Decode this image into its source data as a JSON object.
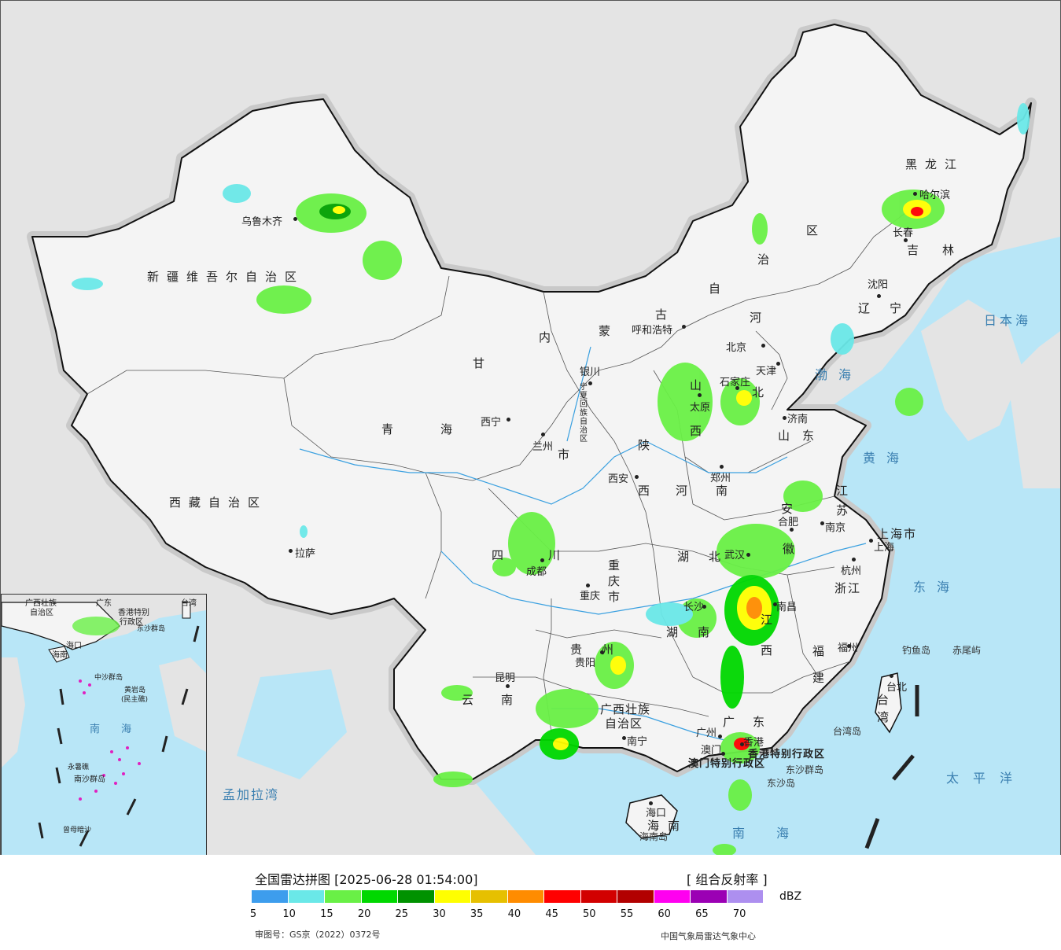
{
  "map": {
    "provinces": [
      {
        "name": "新疆维吾尔自治区"
      },
      {
        "name": "西藏自治区"
      },
      {
        "name": "青海"
      },
      {
        "name": "甘"
      },
      {
        "name": "内"
      },
      {
        "name": "蒙"
      },
      {
        "name": "古"
      },
      {
        "name": "黑龙江"
      },
      {
        "name": "吉林"
      },
      {
        "name": "辽宁"
      },
      {
        "name": "河"
      },
      {
        "name": "北"
      },
      {
        "name": "山"
      },
      {
        "name": "西"
      },
      {
        "name": "山东"
      },
      {
        "name": "河南"
      },
      {
        "name": "陕"
      },
      {
        "name": "西"
      },
      {
        "name": "四"
      },
      {
        "name": "川"
      },
      {
        "name": "重庆市"
      },
      {
        "name": "湖"
      },
      {
        "name": "北"
      },
      {
        "name": "安"
      },
      {
        "name": "徽"
      },
      {
        "name": "江"
      },
      {
        "name": "苏"
      },
      {
        "name": "上海市"
      },
      {
        "name": "浙江"
      },
      {
        "name": "江"
      },
      {
        "name": "西"
      },
      {
        "name": "湖"
      },
      {
        "name": "南"
      },
      {
        "name": "贵"
      },
      {
        "name": "州"
      },
      {
        "name": "云"
      },
      {
        "name": "南"
      },
      {
        "name": "广西壮族"
      },
      {
        "name": "自治区"
      },
      {
        "name": "广"
      },
      {
        "name": "东"
      },
      {
        "name": "福"
      },
      {
        "name": "建"
      },
      {
        "name": "海"
      },
      {
        "name": "南"
      },
      {
        "name": "台"
      },
      {
        "name": "湾"
      },
      {
        "name": "区"
      },
      {
        "name": "治"
      },
      {
        "name": "自"
      },
      {
        "name": "宁夏回族自治区"
      },
      {
        "name": "香港特别行政区"
      },
      {
        "name": "澳门特别行政区"
      },
      {
        "name": "市"
      }
    ],
    "cities": [
      "乌鲁木齐",
      "拉萨",
      "西宁",
      "兰州",
      "银川",
      "呼和浩特",
      "太原",
      "石家庄",
      "北京",
      "天津",
      "济南",
      "郑州",
      "西安",
      "成都",
      "重庆",
      "贵阳",
      "昆明",
      "南宁",
      "广州",
      "香港",
      "澳门",
      "长沙",
      "武汉",
      "南昌",
      "合肥",
      "南京",
      "上海",
      "杭州",
      "福州",
      "台北",
      "沈阳",
      "长春",
      "哈尔滨",
      "海口"
    ],
    "seas": [
      "日本海",
      "渤海",
      "黄海",
      "东海",
      "南海",
      "太平洋",
      "孟加拉湾"
    ],
    "islands": [
      "钓鱼岛",
      "赤尾屿",
      "台湾岛",
      "东沙群岛",
      "东沙岛",
      "海南岛"
    ],
    "inset": {
      "labels": [
        "广西壮族",
        "自治区",
        "广东",
        "香港特别",
        "行政区",
        "东沙群岛",
        "台湾",
        "海口",
        "海南",
        "中沙群岛",
        "黄岩岛",
        "(民主礁)",
        "南",
        "海",
        "永暑礁",
        "南沙群岛",
        "曾母暗沙"
      ]
    }
  },
  "legend": {
    "title": "全国雷达拼图 [2025-06-28 01:54:00]",
    "product": "[ 组合反射率 ]",
    "unit": "dBZ",
    "ticks": [
      "5",
      "10",
      "15",
      "20",
      "25",
      "30",
      "35",
      "40",
      "45",
      "50",
      "55",
      "60",
      "65",
      "70"
    ],
    "colors": [
      "#3d9ded",
      "#6ae8e8",
      "#69f046",
      "#00d800",
      "#009200",
      "#ffff00",
      "#e6c000",
      "#ff8c00",
      "#ff0000",
      "#d20000",
      "#b20000",
      "#ff00f0",
      "#9b00b4",
      "#ad8fef"
    ],
    "review_number": "审图号：GS京（2022）0372号",
    "organization": "中国气象局雷达气象中心"
  }
}
